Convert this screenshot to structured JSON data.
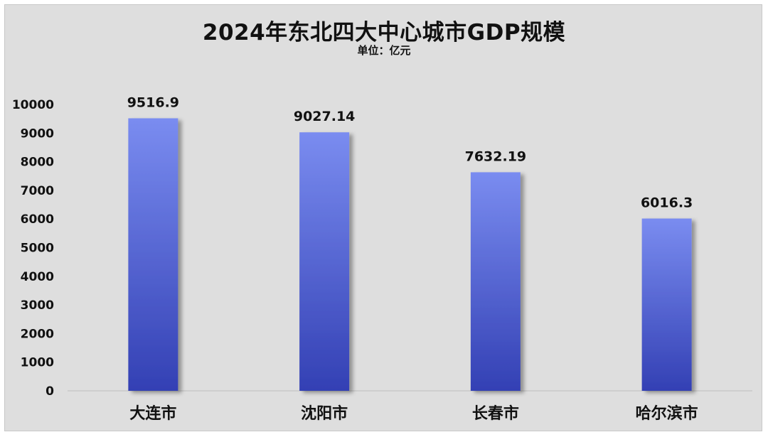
{
  "chart_data": {
    "type": "bar",
    "title": "2024年东北四大中心城市GDP规模",
    "subtitle": "单位：亿元",
    "categories": [
      "大连市",
      "沈阳市",
      "长春市",
      "哈尔滨市"
    ],
    "values": [
      9516.9,
      9027.14,
      7632.19,
      6016.3
    ],
    "data_labels": [
      "9516.9",
      "9027.14",
      "7632.19",
      "6016.3"
    ],
    "ylim": [
      0,
      10000
    ],
    "yticks": [
      "0",
      "1000",
      "2000",
      "3000",
      "4000",
      "5000",
      "6000",
      "7000",
      "8000",
      "9000",
      "10000"
    ],
    "grid": false,
    "colors": {
      "bar_top": "#7a8cf0",
      "bar_bottom": "#3340b4",
      "background": "#dedede"
    }
  }
}
